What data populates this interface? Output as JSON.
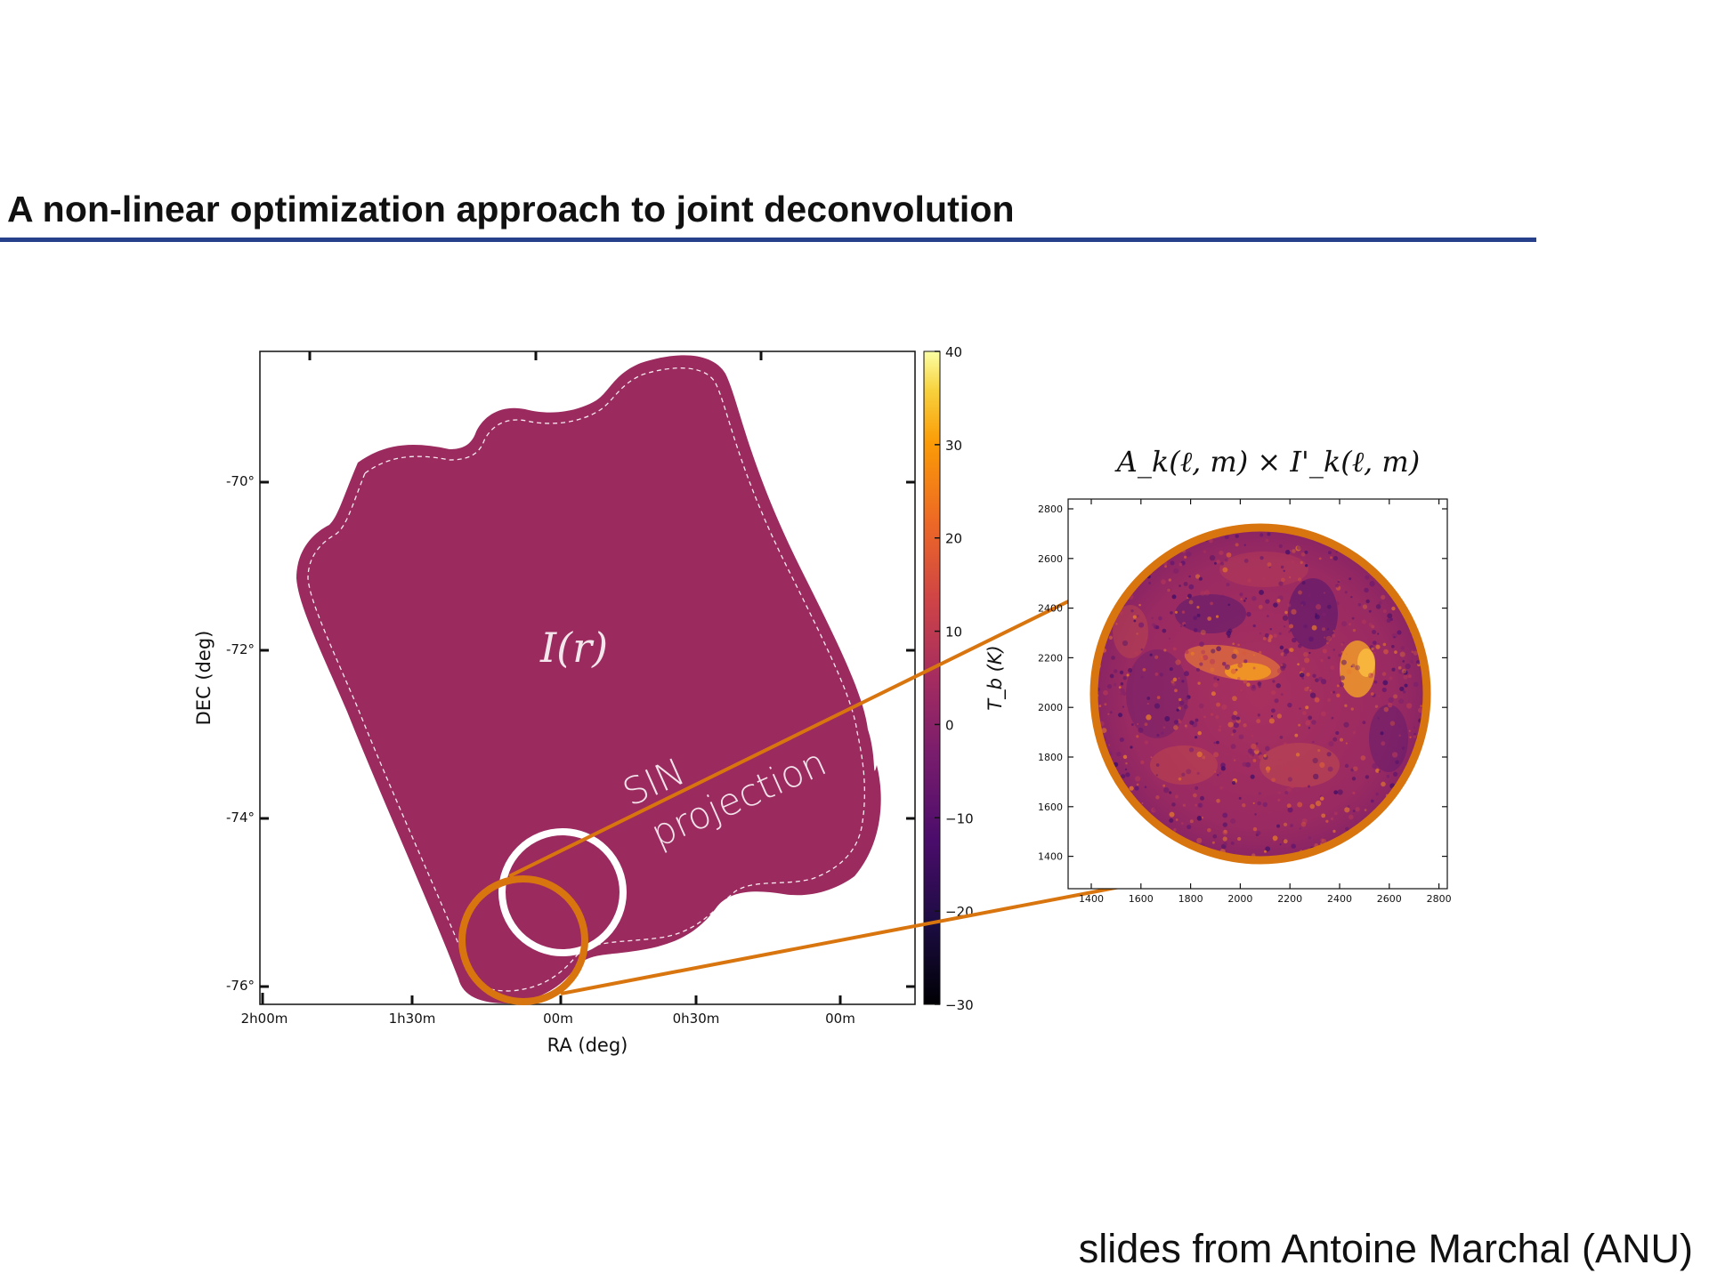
{
  "slide": {
    "title": "A non-linear optimization approach to joint deconvolution",
    "credit": "slides from Antoine Marchal (ANU)"
  },
  "colors": {
    "title_rule": "#27408b",
    "map_fill": "#9b2a5e",
    "orange": "#d9750f",
    "white_circle": "#ffffff"
  },
  "main_map": {
    "xlabel": "RA (deg)",
    "ylabel": "DEC (deg)",
    "xticks": [
      "2h00m",
      "1h30m",
      "00m",
      "0h30m",
      "00m"
    ],
    "yticks": [
      "-70°",
      "-72°",
      "-74°",
      "-76°"
    ],
    "map_label": "I(r)",
    "projection_label_line1": "SIN",
    "projection_label_line2": "projection"
  },
  "colorbar": {
    "label": "T_b (K)",
    "ticks": [
      40,
      30,
      20,
      10,
      0,
      -10,
      -20,
      -30
    ],
    "range": [
      -30,
      40
    ],
    "colormap": "inferno"
  },
  "inset": {
    "title": "A_k(ℓ, m) × I'_k(ℓ, m)",
    "xticks": [
      "1400",
      "1600",
      "1800",
      "2000",
      "2200",
      "2400",
      "2600",
      "2800"
    ],
    "yticks": [
      "2800",
      "2600",
      "2400",
      "2200",
      "2000",
      "1800",
      "1600",
      "1400"
    ]
  }
}
